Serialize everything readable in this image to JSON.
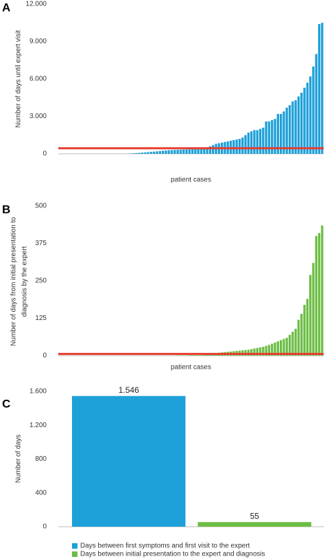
{
  "chart_data": [
    {
      "type": "bar",
      "panel": "A",
      "ylabel": [
        "Number of days until expert visit"
      ],
      "xlabel": "patient cases",
      "color": "#1ea0d8",
      "values": [
        0,
        0,
        0,
        0,
        0,
        0,
        0,
        0,
        0,
        0,
        0,
        0,
        0,
        0,
        0,
        0,
        0,
        0,
        0,
        0,
        0,
        0,
        0,
        0,
        30,
        50,
        60,
        80,
        100,
        120,
        140,
        160,
        180,
        200,
        220,
        250,
        270,
        290,
        300,
        310,
        320,
        330,
        340,
        350,
        360,
        380,
        400,
        420,
        450,
        480,
        520,
        600,
        700,
        800,
        850,
        900,
        950,
        1000,
        1050,
        1100,
        1150,
        1200,
        1300,
        1500,
        1700,
        1800,
        1900,
        1900,
        2000,
        2100,
        2600,
        2600,
        2700,
        2800,
        3200,
        3200,
        3400,
        3700,
        3900,
        4200,
        4300,
        4600,
        4900,
        5300,
        5700,
        6200,
        7000,
        8000,
        10400,
        10500
      ],
      "ylim": [
        0,
        12000
      ],
      "yticks": [
        0,
        {
          "value": 3000,
          "label": "3.000"
        },
        {
          "value": 6000,
          "label": "6.000"
        },
        {
          "value": 9000,
          "label": "9.000"
        },
        {
          "value": 12000,
          "label": "12.000"
        }
      ],
      "reference_line": {
        "value": 450,
        "color": "#e63b2e"
      }
    },
    {
      "type": "bar",
      "panel": "B",
      "ylabel": [
        "Number of days from initial presentation to",
        "diagnosis by the expert"
      ],
      "xlabel": "patient cases",
      "color": "#6cbd45",
      "values": [
        0,
        0,
        0,
        0,
        0,
        0,
        0,
        0,
        0,
        0,
        0,
        0,
        0,
        0,
        0,
        0,
        0,
        0,
        0,
        0,
        0,
        0,
        0,
        0,
        0,
        0,
        0,
        0,
        0,
        0,
        0,
        0,
        0,
        0,
        0,
        0,
        0,
        0,
        0,
        0,
        1,
        1,
        1,
        1,
        2,
        2,
        2,
        2,
        2,
        3,
        3,
        3,
        8,
        9,
        10,
        11,
        12,
        13,
        14,
        15,
        16,
        17,
        18,
        19,
        20,
        22,
        24,
        26,
        28,
        30,
        33,
        36,
        40,
        44,
        48,
        52,
        56,
        60,
        70,
        80,
        90,
        120,
        140,
        170,
        190,
        270,
        310,
        400,
        410,
        435
      ],
      "ylim": [
        0,
        500
      ],
      "yticks": [
        0,
        125,
        250,
        375,
        500
      ],
      "reference_line": {
        "value": 6,
        "color": "#e63b2e"
      }
    },
    {
      "type": "grouped_bar",
      "panel": "C",
      "ylabel": [
        "Number of days"
      ],
      "series": [
        {
          "name": "Days between first symptoms and first visit to the expert",
          "color": "#1ea0d8",
          "values": [
            1546
          ],
          "value_labels": [
            "1.546"
          ]
        },
        {
          "name": "Days between initial presentation to the expert and diagnosis",
          "color": "#6cbd45",
          "values": [
            55
          ],
          "value_labels": [
            "55"
          ]
        }
      ],
      "ylim": [
        0,
        1600
      ],
      "yticks": [
        0,
        400,
        800,
        {
          "value": 1200,
          "label": "1.200"
        },
        {
          "value": 1600,
          "label": "1.600"
        }
      ]
    }
  ]
}
